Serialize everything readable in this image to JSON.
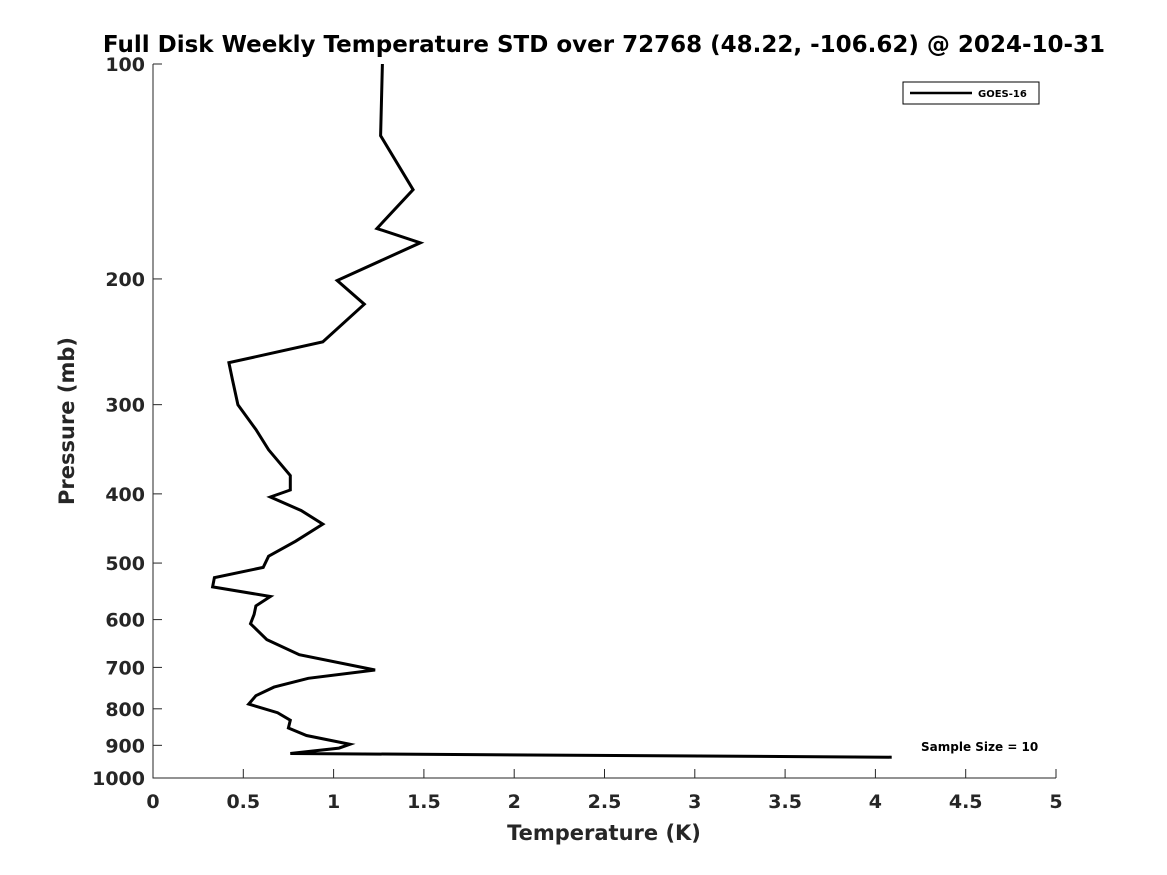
{
  "chart_data": {
    "type": "line",
    "title": "Full Disk Weekly Temperature STD over 72768 (48.22, -106.62) @ 2024-10-31",
    "xlabel": "Temperature (K)",
    "ylabel": "Pressure (mb)",
    "xlim": [
      0,
      5
    ],
    "ylim": [
      100,
      1000
    ],
    "y_scale": "log",
    "y_reversed": true,
    "x_ticks": [
      "0",
      "0.5",
      "1",
      "1.5",
      "2",
      "2.5",
      "3",
      "3.5",
      "4",
      "4.5",
      "5"
    ],
    "y_ticks": [
      "100",
      "200",
      "300",
      "400",
      "500",
      "600",
      "700",
      "800",
      "900",
      "1000"
    ],
    "grid": false,
    "legend": {
      "position": "top-right",
      "entries": [
        "GOES-16"
      ]
    },
    "annotation": "Sample Size = 10",
    "series": [
      {
        "name": "GOES-16",
        "color": "#000000",
        "x": [
          1.27,
          1.26,
          1.44,
          1.24,
          1.48,
          1.02,
          1.17,
          0.94,
          0.42,
          0.44,
          0.47,
          0.57,
          0.64,
          0.76,
          0.76,
          0.65,
          0.82,
          0.94,
          0.79,
          0.64,
          0.61,
          0.34,
          0.33,
          0.65,
          0.57,
          0.56,
          0.54,
          0.63,
          0.81,
          1.23,
          0.86,
          0.67,
          0.57,
          0.53,
          0.69,
          0.76,
          0.75,
          0.85,
          1.09,
          1.03,
          0.76,
          4.09
        ],
        "y": [
          100,
          126,
          150,
          170,
          178,
          201,
          217,
          245,
          262,
          277,
          300,
          325,
          347,
          377,
          395,
          404,
          422,
          441,
          466,
          489,
          507,
          524,
          540,
          557,
          574,
          590,
          608,
          640,
          672,
          706,
          725,
          746,
          767,
          788,
          810,
          830,
          851,
          872,
          897,
          908,
          924,
          935
        ]
      }
    ]
  }
}
